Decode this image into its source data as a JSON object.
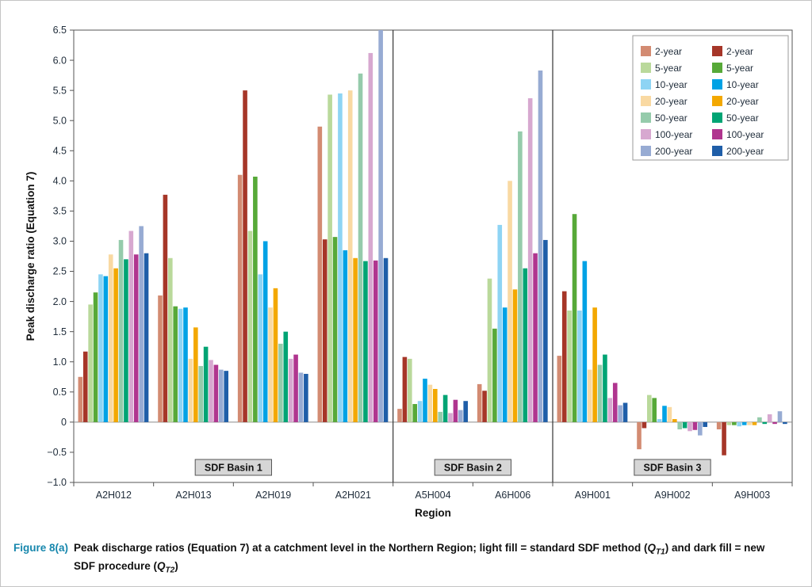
{
  "caption": {
    "label": "Figure 8(a)",
    "label_color": "#1787ad",
    "line1_a": "Peak discharge ratios (Equation 7) at a catchment level in the Northern Region; light fill = standard SDF method (",
    "q_symbol": "Q",
    "q1_sub": "T1",
    "line1_b": ") and dark fill = new",
    "line2_a": "SDF procedure (",
    "q_symbol2": "Q",
    "q2_sub": "T2",
    "line2_b": ")"
  },
  "chart_data": {
    "type": "bar",
    "title": "",
    "xlabel": "Region",
    "ylabel": "Peak discharge ratio (Equation 7)",
    "ylim": [
      -1.0,
      6.5
    ],
    "grid": false,
    "legend_position": "top-right",
    "categories": [
      "A2H012",
      "A2H013",
      "A2H019",
      "A2H021",
      "A5H004",
      "A6H006",
      "A9H001",
      "A9H002",
      "A9H003"
    ],
    "y_ticks": [
      {
        "v": 6.5,
        "label": "6.5"
      },
      {
        "v": 6.0,
        "label": "6.0"
      },
      {
        "v": 5.5,
        "label": "5.5"
      },
      {
        "v": 5.0,
        "label": "5.0"
      },
      {
        "v": 4.5,
        "label": "4.5"
      },
      {
        "v": 4.0,
        "label": "4.0"
      },
      {
        "v": 3.5,
        "label": "3.5"
      },
      {
        "v": 3.0,
        "label": "3.0"
      },
      {
        "v": 2.5,
        "label": "2.5"
      },
      {
        "v": 2.0,
        "label": "2.0"
      },
      {
        "v": 1.5,
        "label": "1.5"
      },
      {
        "v": 1.0,
        "label": "1.0"
      },
      {
        "v": 0.5,
        "label": "0.5"
      },
      {
        "v": 0,
        "label": "0"
      },
      {
        "v": -0.5,
        "label": "−0.5"
      },
      {
        "v": -1.0,
        "label": "−1.0"
      }
    ],
    "basin_dividers": [
      4,
      6
    ],
    "basins": [
      {
        "label": "SDF Basin 1",
        "center": 2
      },
      {
        "label": "SDF Basin 2",
        "center": 5
      },
      {
        "label": "SDF Basin 3",
        "center": 7.5
      }
    ],
    "legend_labels": [
      "2-year",
      "5-year",
      "10-year",
      "20-year",
      "50-year",
      "100-year",
      "200-year"
    ],
    "series_light": [
      {
        "name": "2-year",
        "color": "#d38b72",
        "values": [
          0.75,
          2.1,
          4.1,
          4.9,
          0.22,
          0.63,
          1.1,
          -0.45,
          -0.12
        ]
      },
      {
        "name": "5-year",
        "color": "#bad99b",
        "values": [
          1.95,
          2.72,
          3.17,
          5.43,
          1.05,
          2.38,
          1.85,
          0.45,
          -0.05
        ]
      },
      {
        "name": "10-year",
        "color": "#8ed4f4",
        "values": [
          2.45,
          1.88,
          2.45,
          5.45,
          0.35,
          3.27,
          1.85,
          0.05,
          -0.07
        ]
      },
      {
        "name": "20-year",
        "color": "#f9d9a2",
        "values": [
          2.78,
          1.05,
          1.9,
          5.5,
          0.62,
          4.0,
          0.87,
          0.25,
          -0.05
        ]
      },
      {
        "name": "50-year",
        "color": "#95cbab",
        "values": [
          3.02,
          0.93,
          1.3,
          5.78,
          0.17,
          4.82,
          0.95,
          -0.12,
          0.08
        ]
      },
      {
        "name": "100-year",
        "color": "#d7a8d0",
        "values": [
          3.17,
          1.03,
          1.05,
          6.12,
          0.15,
          5.37,
          0.4,
          -0.15,
          0.13
        ]
      },
      {
        "name": "200-year",
        "color": "#97abd3",
        "values": [
          3.25,
          0.87,
          0.82,
          6.5,
          0.2,
          5.83,
          0.28,
          -0.22,
          0.18
        ]
      }
    ],
    "series_dark": [
      {
        "name": "2-year",
        "color": "#a63628",
        "values": [
          1.17,
          3.77,
          5.5,
          3.03,
          1.08,
          0.52,
          2.17,
          -0.1,
          -0.55
        ]
      },
      {
        "name": "5-year",
        "color": "#57a938",
        "values": [
          2.15,
          1.92,
          4.07,
          3.07,
          0.3,
          1.55,
          3.45,
          0.4,
          -0.05
        ]
      },
      {
        "name": "10-year",
        "color": "#00a2e5",
        "values": [
          2.42,
          1.9,
          3.0,
          2.85,
          0.72,
          1.9,
          2.67,
          0.27,
          -0.05
        ]
      },
      {
        "name": "20-year",
        "color": "#f3a800",
        "values": [
          2.55,
          1.57,
          2.22,
          2.72,
          0.55,
          2.2,
          1.9,
          0.05,
          -0.05
        ]
      },
      {
        "name": "50-year",
        "color": "#00a474",
        "values": [
          2.7,
          1.25,
          1.5,
          2.67,
          0.45,
          2.55,
          1.12,
          -0.1,
          -0.03
        ]
      },
      {
        "name": "100-year",
        "color": "#b0358f",
        "values": [
          2.78,
          0.95,
          1.12,
          2.68,
          0.37,
          2.8,
          0.65,
          -0.13,
          -0.03
        ]
      },
      {
        "name": "200-year",
        "color": "#1f5ea8",
        "values": [
          2.8,
          0.85,
          0.8,
          2.72,
          0.35,
          3.02,
          0.32,
          -0.08,
          -0.03
        ]
      }
    ]
  }
}
